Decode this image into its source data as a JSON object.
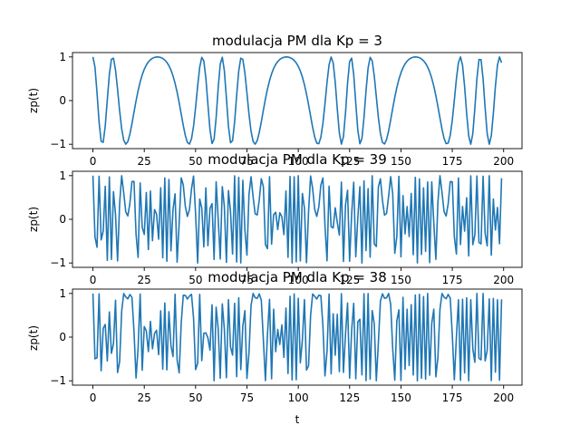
{
  "chart_data": [
    {
      "type": "line",
      "title": "modulacja PM dla Kp = 3",
      "xlabel": "",
      "ylabel": "zp(t)",
      "xlim": [
        -9.95,
        208.95
      ],
      "ylim": [
        -1.1,
        1.1
      ],
      "xticks": [
        0,
        25,
        50,
        75,
        100,
        125,
        150,
        175,
        200
      ],
      "yticks": [
        -1,
        0,
        1
      ],
      "grid": false,
      "color": "#1f77b4",
      "signal": {
        "carrier_step": 0.4,
        "message_step": 0.1,
        "kp": 3,
        "n": 200
      }
    },
    {
      "type": "line",
      "title": "modulacja PM dla Kp = 39",
      "xlabel": "",
      "ylabel": "zp(t)",
      "xlim": [
        -9.95,
        208.95
      ],
      "ylim": [
        -1.1,
        1.1
      ],
      "xticks": [
        0,
        25,
        50,
        75,
        100,
        125,
        150,
        175,
        200
      ],
      "yticks": [
        -1,
        0,
        1
      ],
      "grid": false,
      "color": "#1f77b4",
      "signal": {
        "carrier_step": 0.4,
        "message_step": 0.1,
        "kp": 39,
        "n": 200
      }
    },
    {
      "type": "line",
      "title": "modulacja PM dla Kp = 38",
      "xlabel": "t",
      "ylabel": "zp(t)",
      "xlim": [
        -9.95,
        208.95
      ],
      "ylim": [
        -1.1,
        1.1
      ],
      "xticks": [
        0,
        25,
        50,
        75,
        100,
        125,
        150,
        175,
        200
      ],
      "yticks": [
        -1,
        0,
        1
      ],
      "grid": false,
      "color": "#1f77b4",
      "signal": {
        "carrier_step": 0.4,
        "message_step": 0.1,
        "kp": 38,
        "n": 200
      }
    }
  ]
}
